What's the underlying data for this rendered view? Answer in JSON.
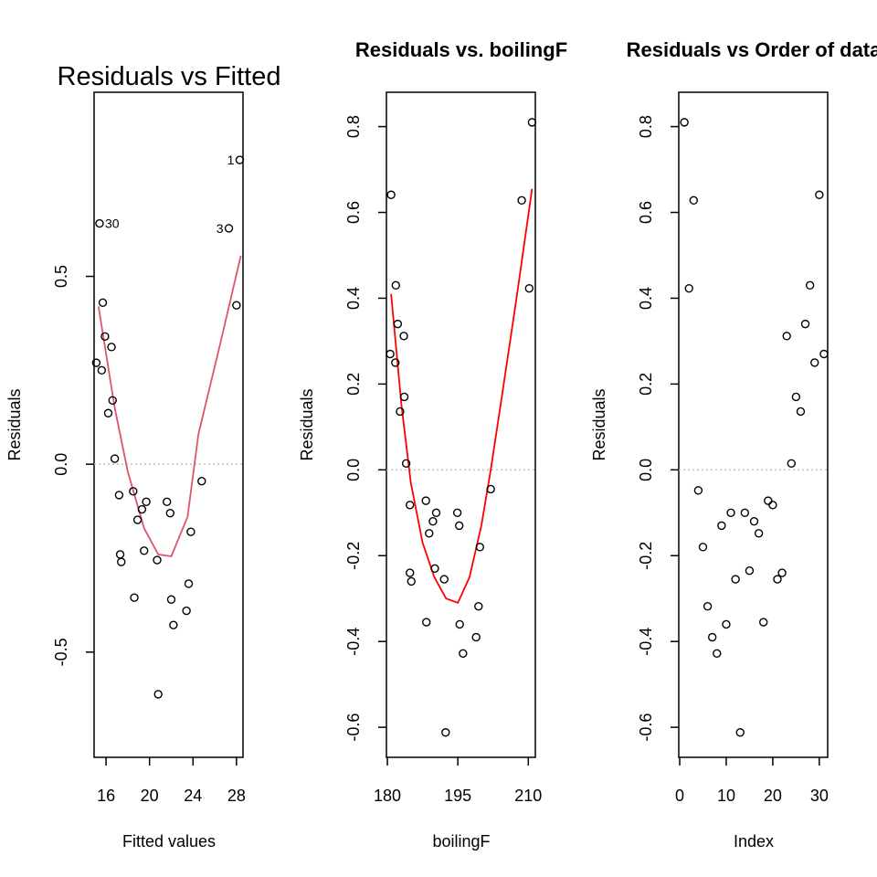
{
  "chart_data": [
    {
      "type": "scatter",
      "title": "Residuals vs Fitted",
      "xlabel": "Fitted values",
      "ylabel": "Residuals",
      "xlim": [
        14.9,
        28.6
      ],
      "ylim": [
        -0.78,
        0.99
      ],
      "xticks": [
        16,
        20,
        24,
        28
      ],
      "yticks": [
        -0.5,
        0.0,
        0.5
      ],
      "ytick_labels": [
        "-0.5",
        "0.0",
        "0.5"
      ],
      "zero_line": 0,
      "line_color": "#DF536B",
      "points": [
        {
          "x": 28.3,
          "y": 0.81
        },
        {
          "x": 28.0,
          "y": 0.423
        },
        {
          "x": 27.3,
          "y": 0.628
        },
        {
          "x": 15.4,
          "y": 0.641
        },
        {
          "x": 15.1,
          "y": 0.27
        },
        {
          "x": 15.6,
          "y": 0.25
        },
        {
          "x": 15.7,
          "y": 0.43
        },
        {
          "x": 15.9,
          "y": 0.34
        },
        {
          "x": 16.2,
          "y": 0.136
        },
        {
          "x": 16.5,
          "y": 0.312
        },
        {
          "x": 16.6,
          "y": 0.17
        },
        {
          "x": 16.8,
          "y": 0.015
        },
        {
          "x": 17.2,
          "y": -0.082
        },
        {
          "x": 17.3,
          "y": -0.24
        },
        {
          "x": 17.4,
          "y": -0.26
        },
        {
          "x": 18.5,
          "y": -0.072
        },
        {
          "x": 18.6,
          "y": -0.355
        },
        {
          "x": 18.9,
          "y": -0.148
        },
        {
          "x": 19.3,
          "y": -0.12
        },
        {
          "x": 19.5,
          "y": -0.23
        },
        {
          "x": 19.7,
          "y": -0.1
        },
        {
          "x": 20.7,
          "y": -0.255
        },
        {
          "x": 20.8,
          "y": -0.612
        },
        {
          "x": 21.6,
          "y": -0.1
        },
        {
          "x": 21.9,
          "y": -0.13
        },
        {
          "x": 22.0,
          "y": -0.36
        },
        {
          "x": 22.2,
          "y": -0.428
        },
        {
          "x": 23.4,
          "y": -0.39
        },
        {
          "x": 23.6,
          "y": -0.318
        },
        {
          "x": 23.8,
          "y": -0.18
        },
        {
          "x": 24.8,
          "y": -0.045
        }
      ],
      "point_labels": [
        {
          "x": 28.3,
          "y": 0.81,
          "text": "1",
          "side": "left"
        },
        {
          "x": 27.3,
          "y": 0.628,
          "text": "3",
          "side": "left"
        },
        {
          "x": 15.4,
          "y": 0.641,
          "text": "30",
          "side": "right"
        }
      ],
      "smooth": [
        {
          "x": 15.3,
          "y": 0.42
        },
        {
          "x": 16.8,
          "y": 0.15
        },
        {
          "x": 18.0,
          "y": -0.02
        },
        {
          "x": 19.5,
          "y": -0.17
        },
        {
          "x": 20.8,
          "y": -0.24
        },
        {
          "x": 22.0,
          "y": -0.245
        },
        {
          "x": 23.5,
          "y": -0.14
        },
        {
          "x": 24.5,
          "y": 0.08
        },
        {
          "x": 26.5,
          "y": 0.32
        },
        {
          "x": 28.4,
          "y": 0.555
        }
      ]
    },
    {
      "type": "scatter",
      "title": "Residuals vs. boilingF",
      "xlabel": "boilingF",
      "ylabel": "Residuals",
      "xlim": [
        179.8,
        211.5
      ],
      "ylim": [
        -0.67,
        0.88
      ],
      "xticks": [
        180,
        195,
        210
      ],
      "yticks": [
        -0.6,
        -0.4,
        -0.2,
        0.0,
        0.2,
        0.4,
        0.6,
        0.8
      ],
      "ytick_labels": [
        "-0.6",
        "-0.4",
        "-0.2",
        "0.0",
        "0.2",
        "0.4",
        "0.6",
        "0.8"
      ],
      "zero_line": 0,
      "line_color": "#FF0000",
      "points": [
        {
          "x": 210.8,
          "y": 0.81
        },
        {
          "x": 210.2,
          "y": 0.423
        },
        {
          "x": 208.6,
          "y": 0.628
        },
        {
          "x": 180.8,
          "y": 0.641
        },
        {
          "x": 180.6,
          "y": 0.27
        },
        {
          "x": 181.7,
          "y": 0.25
        },
        {
          "x": 181.8,
          "y": 0.43
        },
        {
          "x": 182.2,
          "y": 0.34
        },
        {
          "x": 182.7,
          "y": 0.136
        },
        {
          "x": 183.5,
          "y": 0.312
        },
        {
          "x": 183.6,
          "y": 0.17
        },
        {
          "x": 184.0,
          "y": 0.015
        },
        {
          "x": 184.8,
          "y": -0.082
        },
        {
          "x": 184.8,
          "y": -0.24
        },
        {
          "x": 185.1,
          "y": -0.26
        },
        {
          "x": 188.2,
          "y": -0.072
        },
        {
          "x": 188.3,
          "y": -0.355
        },
        {
          "x": 188.9,
          "y": -0.148
        },
        {
          "x": 189.7,
          "y": -0.12
        },
        {
          "x": 190.1,
          "y": -0.23
        },
        {
          "x": 190.4,
          "y": -0.1
        },
        {
          "x": 192.1,
          "y": -0.255
        },
        {
          "x": 192.4,
          "y": -0.612
        },
        {
          "x": 194.9,
          "y": -0.1
        },
        {
          "x": 195.3,
          "y": -0.13
        },
        {
          "x": 195.4,
          "y": -0.36
        },
        {
          "x": 196.1,
          "y": -0.428
        },
        {
          "x": 198.9,
          "y": -0.39
        },
        {
          "x": 199.4,
          "y": -0.318
        },
        {
          "x": 199.7,
          "y": -0.18
        },
        {
          "x": 202.0,
          "y": -0.045
        }
      ],
      "smooth": [
        {
          "x": 180.8,
          "y": 0.41
        },
        {
          "x": 183.0,
          "y": 0.15
        },
        {
          "x": 185.0,
          "y": -0.03
        },
        {
          "x": 187.5,
          "y": -0.17
        },
        {
          "x": 190.0,
          "y": -0.25
        },
        {
          "x": 192.5,
          "y": -0.3
        },
        {
          "x": 195.0,
          "y": -0.31
        },
        {
          "x": 197.5,
          "y": -0.25
        },
        {
          "x": 200.0,
          "y": -0.13
        },
        {
          "x": 202.0,
          "y": 0.0
        },
        {
          "x": 204.5,
          "y": 0.18
        },
        {
          "x": 207.5,
          "y": 0.4
        },
        {
          "x": 210.8,
          "y": 0.655
        }
      ]
    },
    {
      "type": "scatter",
      "title": "Residuals vs Order of data",
      "xlabel": "Index",
      "ylabel": "Residuals",
      "xlim": [
        -0.2,
        31.8
      ],
      "ylim": [
        -0.67,
        0.88
      ],
      "xticks": [
        0,
        10,
        20,
        30
      ],
      "yticks": [
        -0.6,
        -0.4,
        -0.2,
        0.0,
        0.2,
        0.4,
        0.6,
        0.8
      ],
      "ytick_labels": [
        "-0.6",
        "-0.4",
        "-0.2",
        "0.0",
        "0.2",
        "0.4",
        "0.6",
        "0.8"
      ],
      "zero_line": 0,
      "points": [
        {
          "x": 1,
          "y": 0.81
        },
        {
          "x": 2,
          "y": 0.423
        },
        {
          "x": 3,
          "y": 0.628
        },
        {
          "x": 4,
          "y": -0.048
        },
        {
          "x": 5,
          "y": -0.18
        },
        {
          "x": 6,
          "y": -0.318
        },
        {
          "x": 7,
          "y": -0.39
        },
        {
          "x": 8,
          "y": -0.428
        },
        {
          "x": 9,
          "y": -0.13
        },
        {
          "x": 10,
          "y": -0.36
        },
        {
          "x": 11,
          "y": -0.1
        },
        {
          "x": 12,
          "y": -0.255
        },
        {
          "x": 13,
          "y": -0.612
        },
        {
          "x": 14,
          "y": -0.1
        },
        {
          "x": 15,
          "y": -0.235
        },
        {
          "x": 16,
          "y": -0.12
        },
        {
          "x": 17,
          "y": -0.148
        },
        {
          "x": 18,
          "y": -0.355
        },
        {
          "x": 19,
          "y": -0.072
        },
        {
          "x": 20,
          "y": -0.082
        },
        {
          "x": 21,
          "y": -0.255
        },
        {
          "x": 22,
          "y": -0.24
        },
        {
          "x": 23,
          "y": 0.312
        },
        {
          "x": 24,
          "y": 0.015
        },
        {
          "x": 25,
          "y": 0.17
        },
        {
          "x": 26,
          "y": 0.136
        },
        {
          "x": 27,
          "y": 0.34
        },
        {
          "x": 28,
          "y": 0.43
        },
        {
          "x": 29,
          "y": 0.25
        },
        {
          "x": 30,
          "y": 0.641
        },
        {
          "x": 31,
          "y": 0.27
        }
      ]
    }
  ]
}
